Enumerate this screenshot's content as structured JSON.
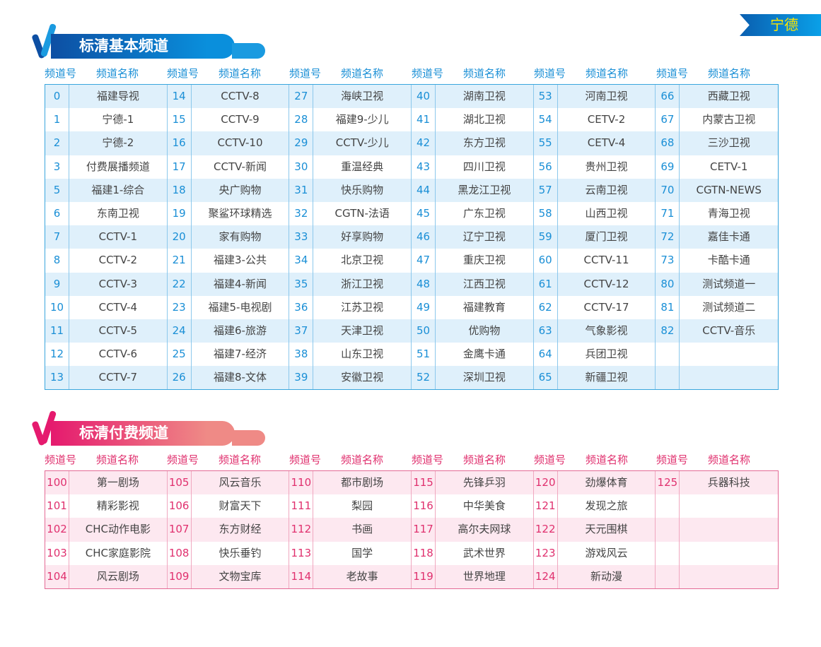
{
  "city": "宁德",
  "colors": {
    "basic_accent": "#1a8fd6",
    "pay_accent": "#e0306e",
    "city_text": "#ffe600"
  },
  "header_labels": {
    "num": "频道号",
    "name": "频道名称"
  },
  "basic": {
    "title": "标清基本频道",
    "columns": [
      [
        [
          "0",
          "福建导视"
        ],
        [
          "1",
          "宁德-1"
        ],
        [
          "2",
          "宁德-2"
        ],
        [
          "3",
          "付费展播频道"
        ],
        [
          "5",
          "福建1-综合"
        ],
        [
          "6",
          "东南卫视"
        ],
        [
          "7",
          "CCTV-1"
        ],
        [
          "8",
          "CCTV-2"
        ],
        [
          "9",
          "CCTV-3"
        ],
        [
          "10",
          "CCTV-4"
        ],
        [
          "11",
          "CCTV-5"
        ],
        [
          "12",
          "CCTV-6"
        ],
        [
          "13",
          "CCTV-7"
        ]
      ],
      [
        [
          "14",
          "CCTV-8"
        ],
        [
          "15",
          "CCTV-9"
        ],
        [
          "16",
          "CCTV-10"
        ],
        [
          "17",
          "CCTV-新闻"
        ],
        [
          "18",
          "央广购物"
        ],
        [
          "19",
          "聚鲨环球精选"
        ],
        [
          "20",
          "家有购物"
        ],
        [
          "21",
          "福建3-公共"
        ],
        [
          "22",
          "福建4-新闻"
        ],
        [
          "23",
          "福建5-电视剧"
        ],
        [
          "24",
          "福建6-旅游"
        ],
        [
          "25",
          "福建7-经济"
        ],
        [
          "26",
          "福建8-文体"
        ]
      ],
      [
        [
          "27",
          "海峡卫视"
        ],
        [
          "28",
          "福建9-少儿"
        ],
        [
          "29",
          "CCTV-少儿"
        ],
        [
          "30",
          "重温经典"
        ],
        [
          "31",
          "快乐购物"
        ],
        [
          "32",
          "CGTN-法语"
        ],
        [
          "33",
          "好享购物"
        ],
        [
          "34",
          "北京卫视"
        ],
        [
          "35",
          "浙江卫视"
        ],
        [
          "36",
          "江苏卫视"
        ],
        [
          "37",
          "天津卫视"
        ],
        [
          "38",
          "山东卫视"
        ],
        [
          "39",
          "安徽卫视"
        ]
      ],
      [
        [
          "40",
          "湖南卫视"
        ],
        [
          "41",
          "湖北卫视"
        ],
        [
          "42",
          "东方卫视"
        ],
        [
          "43",
          "四川卫视"
        ],
        [
          "44",
          "黑龙江卫视"
        ],
        [
          "45",
          "广东卫视"
        ],
        [
          "46",
          "辽宁卫视"
        ],
        [
          "47",
          "重庆卫视"
        ],
        [
          "48",
          "江西卫视"
        ],
        [
          "49",
          "福建教育"
        ],
        [
          "50",
          "优购物"
        ],
        [
          "51",
          "金鹰卡通"
        ],
        [
          "52",
          "深圳卫视"
        ]
      ],
      [
        [
          "53",
          "河南卫视"
        ],
        [
          "54",
          "CETV-2"
        ],
        [
          "55",
          "CETV-4"
        ],
        [
          "56",
          "贵州卫视"
        ],
        [
          "57",
          "云南卫视"
        ],
        [
          "58",
          "山西卫视"
        ],
        [
          "59",
          "厦门卫视"
        ],
        [
          "60",
          "CCTV-11"
        ],
        [
          "61",
          "CCTV-12"
        ],
        [
          "62",
          "CCTV-17"
        ],
        [
          "63",
          "气象影视"
        ],
        [
          "64",
          "兵团卫视"
        ],
        [
          "65",
          "新疆卫视"
        ]
      ],
      [
        [
          "66",
          "西藏卫视"
        ],
        [
          "67",
          "内蒙古卫视"
        ],
        [
          "68",
          "三沙卫视"
        ],
        [
          "69",
          "CETV-1"
        ],
        [
          "70",
          "CGTN-NEWS"
        ],
        [
          "71",
          "青海卫视"
        ],
        [
          "72",
          "嘉佳卡通"
        ],
        [
          "73",
          "卡酷卡通"
        ],
        [
          "80",
          "测试频道一"
        ],
        [
          "81",
          "测试频道二"
        ],
        [
          "82",
          "CCTV-音乐"
        ],
        [
          "",
          ""
        ],
        [
          "",
          ""
        ]
      ]
    ]
  },
  "pay": {
    "title": "标清付费频道",
    "columns": [
      [
        [
          "100",
          "第一剧场"
        ],
        [
          "101",
          "精彩影视"
        ],
        [
          "102",
          "CHC动作电影"
        ],
        [
          "103",
          "CHC家庭影院"
        ],
        [
          "104",
          "风云剧场"
        ]
      ],
      [
        [
          "105",
          "风云音乐"
        ],
        [
          "106",
          "财富天下"
        ],
        [
          "107",
          "东方财经"
        ],
        [
          "108",
          "快乐垂钓"
        ],
        [
          "109",
          "文物宝库"
        ]
      ],
      [
        [
          "110",
          "都市剧场"
        ],
        [
          "111",
          "梨园"
        ],
        [
          "112",
          "书画"
        ],
        [
          "113",
          "国学"
        ],
        [
          "114",
          "老故事"
        ]
      ],
      [
        [
          "115",
          "先锋乒羽"
        ],
        [
          "116",
          "中华美食"
        ],
        [
          "117",
          "高尔夫网球"
        ],
        [
          "118",
          "武术世界"
        ],
        [
          "119",
          "世界地理"
        ]
      ],
      [
        [
          "120",
          "劲爆体育"
        ],
        [
          "121",
          "发现之旅"
        ],
        [
          "122",
          "天元围棋"
        ],
        [
          "123",
          "游戏风云"
        ],
        [
          "124",
          "新动漫"
        ]
      ],
      [
        [
          "125",
          "兵器科技"
        ],
        [
          "",
          ""
        ],
        [
          "",
          ""
        ],
        [
          "",
          ""
        ],
        [
          "",
          ""
        ]
      ]
    ]
  }
}
